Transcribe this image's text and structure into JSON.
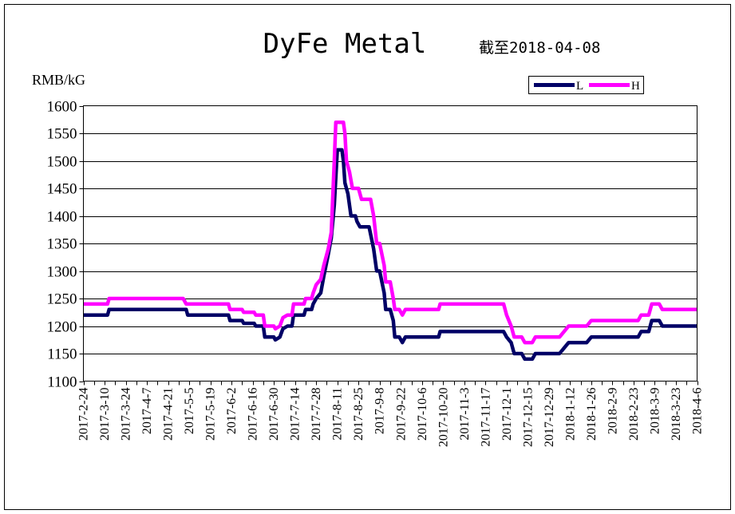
{
  "chart_data": {
    "type": "line",
    "title": "DyFe Metal",
    "subtitle": "截至2018-04-08",
    "ylabel": "RMB/kG",
    "ylim": [
      1100,
      1600
    ],
    "yticks": [
      1100,
      1150,
      1200,
      1250,
      1300,
      1350,
      1400,
      1450,
      1500,
      1550,
      1600
    ],
    "xlim": [
      "2017-02-24",
      "2018-04-06"
    ],
    "x_tick_labels": [
      "2017-2-24",
      "2017-3-10",
      "2017-3-24",
      "2017-4-7",
      "2017-4-21",
      "2017-5-5",
      "2017-5-19",
      "2017-6-2",
      "2017-6-16",
      "2017-6-30",
      "2017-7-14",
      "2017-7-28",
      "2017-8-11",
      "2017-8-25",
      "2017-9-8",
      "2017-9-22",
      "2017-10-6",
      "2017-10-20",
      "2017-11-3",
      "2017-11-17",
      "2017-12-1",
      "2017-12-15",
      "2017-12-29",
      "2018-1-12",
      "2018-1-26",
      "2018-2-9",
      "2018-2-23",
      "2018-3-9",
      "2018-3-23",
      "2018-4-6"
    ],
    "grid": "horizontal",
    "legend": "top-right",
    "series": [
      {
        "name": "L",
        "color": "#000066",
        "points": [
          [
            "2017-02-24",
            1220
          ],
          [
            "2017-03-12",
            1220
          ],
          [
            "2017-03-13",
            1230
          ],
          [
            "2017-05-03",
            1230
          ],
          [
            "2017-05-04",
            1220
          ],
          [
            "2017-05-31",
            1220
          ],
          [
            "2017-06-01",
            1210
          ],
          [
            "2017-06-09",
            1210
          ],
          [
            "2017-06-10",
            1205
          ],
          [
            "2017-06-17",
            1205
          ],
          [
            "2017-06-18",
            1200
          ],
          [
            "2017-06-23",
            1200
          ],
          [
            "2017-06-24",
            1180
          ],
          [
            "2017-06-30",
            1180
          ],
          [
            "2017-07-01",
            1175
          ],
          [
            "2017-07-04",
            1180
          ],
          [
            "2017-07-06",
            1195
          ],
          [
            "2017-07-09",
            1200
          ],
          [
            "2017-07-12",
            1200
          ],
          [
            "2017-07-13",
            1220
          ],
          [
            "2017-07-20",
            1220
          ],
          [
            "2017-07-21",
            1230
          ],
          [
            "2017-07-25",
            1230
          ],
          [
            "2017-07-26",
            1240
          ],
          [
            "2017-07-28",
            1250
          ],
          [
            "2017-07-31",
            1260
          ],
          [
            "2017-08-02",
            1290
          ],
          [
            "2017-08-05",
            1330
          ],
          [
            "2017-08-07",
            1360
          ],
          [
            "2017-08-09",
            1420
          ],
          [
            "2017-08-11",
            1520
          ],
          [
            "2017-08-14",
            1520
          ],
          [
            "2017-08-15",
            1500
          ],
          [
            "2017-08-16",
            1460
          ],
          [
            "2017-08-18",
            1440
          ],
          [
            "2017-08-20",
            1400
          ],
          [
            "2017-08-23",
            1400
          ],
          [
            "2017-08-24",
            1390
          ],
          [
            "2017-08-26",
            1380
          ],
          [
            "2017-09-01",
            1380
          ],
          [
            "2017-09-04",
            1340
          ],
          [
            "2017-09-06",
            1300
          ],
          [
            "2017-09-08",
            1300
          ],
          [
            "2017-09-11",
            1260
          ],
          [
            "2017-09-12",
            1230
          ],
          [
            "2017-09-15",
            1230
          ],
          [
            "2017-09-17",
            1210
          ],
          [
            "2017-09-18",
            1180
          ],
          [
            "2017-09-21",
            1180
          ],
          [
            "2017-09-23",
            1170
          ],
          [
            "2017-09-25",
            1180
          ],
          [
            "2017-10-17",
            1180
          ],
          [
            "2017-10-18",
            1190
          ],
          [
            "2017-11-29",
            1190
          ],
          [
            "2017-12-01",
            1180
          ],
          [
            "2017-12-04",
            1170
          ],
          [
            "2017-12-06",
            1150
          ],
          [
            "2017-12-11",
            1150
          ],
          [
            "2017-12-13",
            1140
          ],
          [
            "2017-12-18",
            1140
          ],
          [
            "2017-12-20",
            1150
          ],
          [
            "2018-01-05",
            1150
          ],
          [
            "2018-01-08",
            1160
          ],
          [
            "2018-01-11",
            1170
          ],
          [
            "2018-01-23",
            1170
          ],
          [
            "2018-01-26",
            1180
          ],
          [
            "2018-02-26",
            1180
          ],
          [
            "2018-02-28",
            1190
          ],
          [
            "2018-03-05",
            1190
          ],
          [
            "2018-03-07",
            1210
          ],
          [
            "2018-03-12",
            1210
          ],
          [
            "2018-03-14",
            1200
          ],
          [
            "2018-04-06",
            1200
          ]
        ]
      },
      {
        "name": "H",
        "color": "#ff00ff",
        "points": [
          [
            "2017-02-24",
            1240
          ],
          [
            "2017-03-12",
            1240
          ],
          [
            "2017-03-13",
            1250
          ],
          [
            "2017-05-01",
            1250
          ],
          [
            "2017-05-03",
            1240
          ],
          [
            "2017-05-31",
            1240
          ],
          [
            "2017-06-01",
            1230
          ],
          [
            "2017-06-09",
            1230
          ],
          [
            "2017-06-10",
            1225
          ],
          [
            "2017-06-17",
            1225
          ],
          [
            "2017-06-18",
            1220
          ],
          [
            "2017-06-23",
            1220
          ],
          [
            "2017-06-24",
            1200
          ],
          [
            "2017-06-30",
            1200
          ],
          [
            "2017-07-01",
            1195
          ],
          [
            "2017-07-04",
            1200
          ],
          [
            "2017-07-06",
            1215
          ],
          [
            "2017-07-09",
            1220
          ],
          [
            "2017-07-12",
            1220
          ],
          [
            "2017-07-13",
            1240
          ],
          [
            "2017-07-20",
            1240
          ],
          [
            "2017-07-21",
            1250
          ],
          [
            "2017-07-25",
            1250
          ],
          [
            "2017-07-26",
            1260
          ],
          [
            "2017-07-28",
            1275
          ],
          [
            "2017-07-31",
            1285
          ],
          [
            "2017-08-02",
            1310
          ],
          [
            "2017-08-05",
            1340
          ],
          [
            "2017-08-07",
            1370
          ],
          [
            "2017-08-09",
            1500
          ],
          [
            "2017-08-10",
            1570
          ],
          [
            "2017-08-15",
            1570
          ],
          [
            "2017-08-16",
            1550
          ],
          [
            "2017-08-17",
            1500
          ],
          [
            "2017-08-19",
            1480
          ],
          [
            "2017-08-21",
            1450
          ],
          [
            "2017-08-25",
            1450
          ],
          [
            "2017-08-27",
            1430
          ],
          [
            "2017-09-02",
            1430
          ],
          [
            "2017-09-04",
            1400
          ],
          [
            "2017-09-06",
            1350
          ],
          [
            "2017-09-08",
            1350
          ],
          [
            "2017-09-11",
            1310
          ],
          [
            "2017-09-12",
            1280
          ],
          [
            "2017-09-15",
            1280
          ],
          [
            "2017-09-17",
            1250
          ],
          [
            "2017-09-18",
            1230
          ],
          [
            "2017-09-21",
            1230
          ],
          [
            "2017-09-23",
            1220
          ],
          [
            "2017-09-25",
            1230
          ],
          [
            "2017-10-17",
            1230
          ],
          [
            "2017-10-18",
            1240
          ],
          [
            "2017-11-29",
            1240
          ],
          [
            "2017-12-01",
            1220
          ],
          [
            "2017-12-04",
            1200
          ],
          [
            "2017-12-06",
            1180
          ],
          [
            "2017-12-11",
            1180
          ],
          [
            "2017-12-13",
            1170
          ],
          [
            "2017-12-18",
            1170
          ],
          [
            "2017-12-20",
            1180
          ],
          [
            "2018-01-05",
            1180
          ],
          [
            "2018-01-08",
            1190
          ],
          [
            "2018-01-11",
            1200
          ],
          [
            "2018-01-23",
            1200
          ],
          [
            "2018-01-26",
            1210
          ],
          [
            "2018-02-26",
            1210
          ],
          [
            "2018-02-28",
            1220
          ],
          [
            "2018-03-05",
            1220
          ],
          [
            "2018-03-07",
            1240
          ],
          [
            "2018-03-12",
            1240
          ],
          [
            "2018-03-14",
            1230
          ],
          [
            "2018-04-06",
            1230
          ]
        ]
      }
    ]
  }
}
